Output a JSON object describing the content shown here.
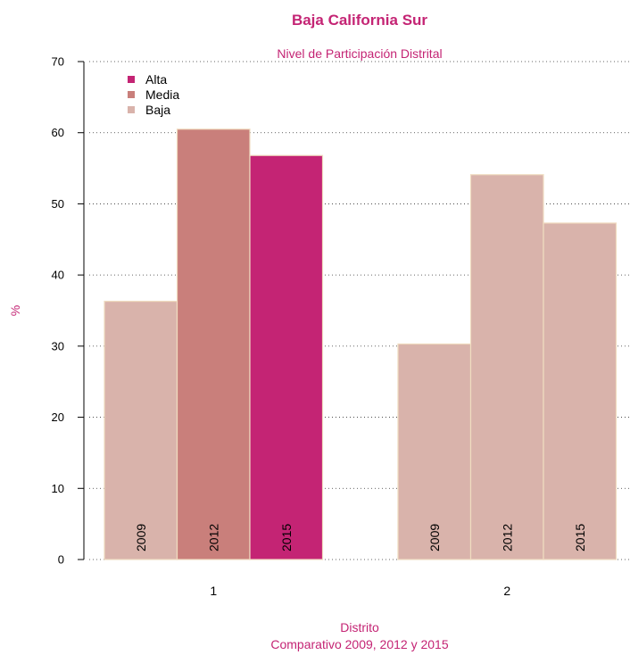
{
  "chart_data": {
    "type": "bar",
    "title": "Baja California Sur",
    "subtitle": "Nivel de Participación Distrital",
    "xlabel": "Distrito",
    "xlabel_sub": "Comparativo 2009, 2012 y 2015",
    "ylabel": "%",
    "ylim": [
      0,
      70
    ],
    "yticks": [
      0,
      10,
      20,
      30,
      40,
      50,
      60,
      70
    ],
    "grid": true,
    "legend_position": "top-left",
    "legend": [
      {
        "label": "Alta",
        "color": "#c42474"
      },
      {
        "label": "Media",
        "color": "#c97f7b"
      },
      {
        "label": "Baja",
        "color": "#d9b3ab"
      }
    ],
    "categories": [
      "1",
      "2"
    ],
    "years": [
      "2009",
      "2012",
      "2015"
    ],
    "groups": [
      {
        "category": "1",
        "bars": [
          {
            "year": "2009",
            "value": 36.3,
            "level": "Baja"
          },
          {
            "year": "2012",
            "value": 60.5,
            "level": "Media"
          },
          {
            "year": "2015",
            "value": 56.8,
            "level": "Alta"
          }
        ]
      },
      {
        "category": "2",
        "bars": [
          {
            "year": "2009",
            "value": 30.3,
            "level": "Baja"
          },
          {
            "year": "2012",
            "value": 54.1,
            "level": "Baja"
          },
          {
            "year": "2015",
            "value": 47.3,
            "level": "Baja"
          }
        ]
      }
    ],
    "colors": {
      "title": "#c42474",
      "bar_border": "#f0dcc0",
      "grid": "#333333"
    }
  }
}
